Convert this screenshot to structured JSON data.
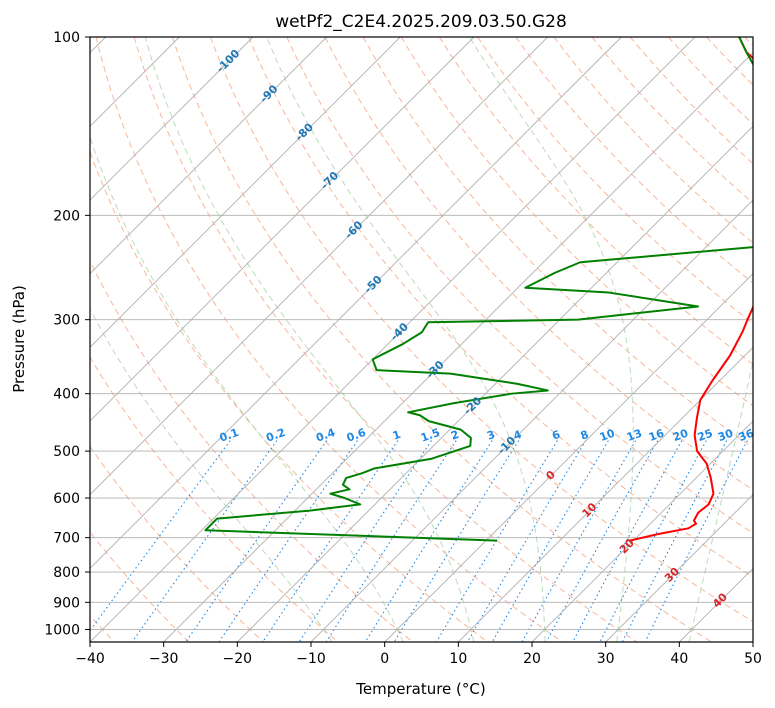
{
  "chart_data": {
    "type": "line",
    "subtype": "skew-t log-p sounding",
    "title": "wetPf2_C2E4.2025.209.03.50.G28",
    "xlabel": "Temperature (°C)",
    "ylabel": "Pressure (hPa)",
    "xlim": [
      -40,
      50
    ],
    "ylim": [
      1050,
      100
    ],
    "y_scale": "log",
    "x_ticks": [
      "−40",
      "−30",
      "−20",
      "−10",
      "0",
      "10",
      "20",
      "30",
      "40",
      "50"
    ],
    "y_ticks": [
      "100",
      "200",
      "300",
      "400",
      "500",
      "600",
      "700",
      "800",
      "900",
      "1000"
    ],
    "grid": true,
    "series": [
      {
        "name": "",
        "color": "#ff0000",
        "points": [
          [
            19.5,
            708
          ],
          [
            22.5,
            690
          ],
          [
            25.8,
            675
          ],
          [
            26.2,
            663
          ],
          [
            25.5,
            655
          ],
          [
            25.0,
            635
          ],
          [
            25.3,
            615
          ],
          [
            24.5,
            590
          ],
          [
            22.0,
            555
          ],
          [
            19.5,
            525
          ],
          [
            16.5,
            500
          ],
          [
            14.0,
            470
          ],
          [
            12.0,
            440
          ],
          [
            10.0,
            410
          ],
          [
            9.0,
            380
          ],
          [
            8.0,
            345
          ],
          [
            6.5,
            315
          ],
          [
            5.5,
            300
          ],
          [
            4.5,
            285
          ],
          [
            3.0,
            260
          ],
          [
            0.5,
            235
          ],
          [
            -3.0,
            210
          ],
          [
            -6.0,
            195
          ],
          [
            -10.0,
            180
          ],
          [
            -12.0,
            170
          ],
          [
            -14.0,
            162
          ],
          [
            -16.5,
            150
          ],
          [
            -19.0,
            140
          ],
          [
            -21.5,
            130
          ],
          [
            -24.0,
            120
          ],
          [
            -27.0,
            112
          ],
          [
            -31.0,
            106
          ],
          [
            -34.0,
            100
          ]
        ]
      },
      {
        "name": "",
        "color": "#008000",
        "points": [
          [
            1.5,
            708
          ],
          [
            -39.5,
            680
          ],
          [
            -39.5,
            650
          ],
          [
            -28.0,
            630
          ],
          [
            -22.0,
            615
          ],
          [
            -25.0,
            600
          ],
          [
            -27.5,
            590
          ],
          [
            -25.5,
            580
          ],
          [
            -27.0,
            570
          ],
          [
            -27.5,
            555
          ],
          [
            -26.0,
            545
          ],
          [
            -25.0,
            535
          ],
          [
            -18.5,
            515
          ],
          [
            -15.0,
            490
          ],
          [
            -16.0,
            475
          ],
          [
            -18.5,
            460
          ],
          [
            -24.0,
            445
          ],
          [
            -26.0,
            435
          ],
          [
            -28.0,
            430
          ],
          [
            -23.0,
            415
          ],
          [
            -16.5,
            400
          ],
          [
            -12.0,
            395
          ],
          [
            -17.0,
            385
          ],
          [
            -27.5,
            370
          ],
          [
            -38.0,
            365
          ],
          [
            -40.0,
            350
          ],
          [
            -38.0,
            330
          ],
          [
            -37.0,
            315
          ],
          [
            -37.5,
            303
          ],
          [
            -17.5,
            300
          ],
          [
            -3.0,
            285
          ],
          [
            -17.0,
            270
          ],
          [
            -29.0,
            265
          ],
          [
            -27.0,
            250
          ],
          [
            -25.0,
            240
          ],
          [
            -1.5,
            225
          ],
          [
            -3.0,
            210
          ],
          [
            -6.5,
            195
          ],
          [
            -9.5,
            180
          ],
          [
            -12.0,
            170
          ],
          [
            -14.0,
            160
          ],
          [
            -16.0,
            150
          ],
          [
            -18.5,
            140
          ],
          [
            -21.0,
            130
          ],
          [
            -24.5,
            120
          ],
          [
            -28.0,
            112
          ],
          [
            -31.0,
            106
          ],
          [
            -34.0,
            100
          ]
        ]
      }
    ],
    "background_lines": {
      "isotherm_step": 10,
      "dry_adiabats": [
        -40,
        -30,
        -20,
        -10,
        0,
        10,
        20,
        30,
        40,
        50,
        60,
        70,
        80,
        90,
        100,
        110,
        120,
        130,
        140,
        150,
        160,
        170,
        180,
        190,
        200
      ],
      "moist_adiabats": [
        -10,
        0,
        10,
        20,
        30,
        40,
        50
      ],
      "mixing_ratio_lines": [
        0.1,
        0.2,
        0.4,
        0.6,
        1,
        1.5,
        2,
        3,
        4,
        6,
        8,
        10,
        13,
        16,
        20,
        25,
        30,
        36
      ]
    },
    "annotations": {
      "mixing_ratio_labels": [
        "0.1",
        "0.2",
        "0.4",
        "0.6",
        "1",
        "1.5",
        "2",
        "3",
        "4",
        "6",
        "8",
        "10",
        "13",
        "16",
        "20",
        "25",
        "30",
        "36"
      ],
      "cold_isotherm_labels": [
        {
          "text": "-100",
          "t": -100,
          "p": 110
        },
        {
          "text": "-90",
          "t": -90,
          "p": 125
        },
        {
          "text": "-80",
          "t": -80,
          "p": 145
        },
        {
          "text": "-70",
          "t": -70,
          "p": 175
        },
        {
          "text": "-60",
          "t": -60,
          "p": 212
        },
        {
          "text": "-50",
          "t": -50,
          "p": 262
        },
        {
          "text": "-40",
          "t": -40,
          "p": 315
        },
        {
          "text": "-30",
          "t": -30,
          "p": 365
        },
        {
          "text": "-20",
          "t": -20,
          "p": 420
        },
        {
          "text": "-10",
          "t": -10,
          "p": 490
        }
      ],
      "warm_isotherm_labels": [
        {
          "text": "0",
          "t": 0,
          "p": 550
        },
        {
          "text": "10",
          "t": 10,
          "p": 630
        },
        {
          "text": "20",
          "t": 20,
          "p": 725
        },
        {
          "text": "30",
          "t": 30,
          "p": 810
        },
        {
          "text": "40",
          "t": 40,
          "p": 895
        }
      ]
    },
    "colors": {
      "temperature": "#ff0000",
      "dewpoint": "#008000",
      "grid": "#b0b0b0",
      "dry_adiabat": "#f4a582",
      "moist_adiabat": "#b2d8b2",
      "mixing_ratio": "#1e88e5",
      "cold_isotherm_label": "#1f77b4",
      "warm_isotherm_label": "#d62728",
      "iso_thick": "#c8a070"
    }
  }
}
